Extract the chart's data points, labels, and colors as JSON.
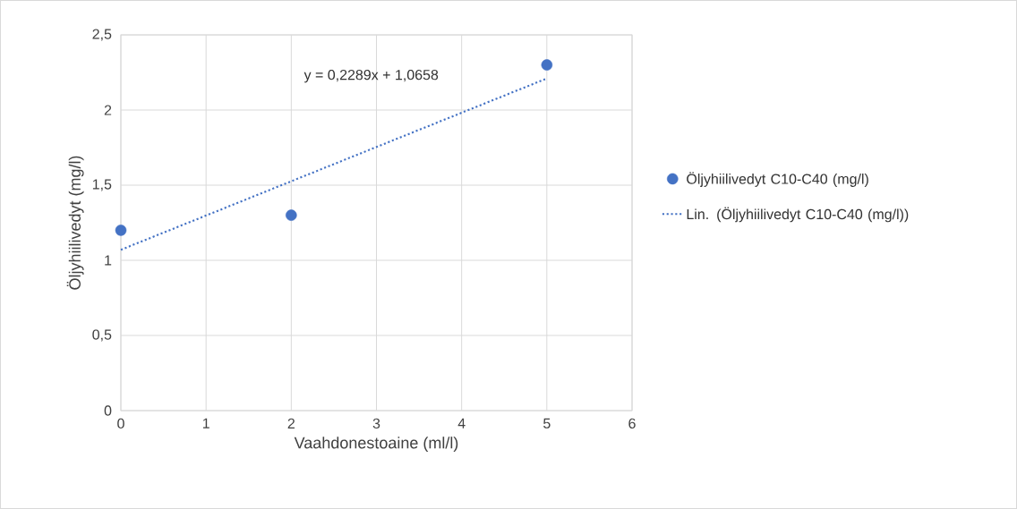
{
  "chart_data": {
    "type": "scatter",
    "xlabel": "Vaahdonestoaine (ml/l)",
    "ylabel": "Öljyhiilivedyt (mg/l)",
    "xlim": [
      0,
      6
    ],
    "ylim": [
      0,
      2.5
    ],
    "xticks": [
      0,
      1,
      2,
      3,
      4,
      5,
      6
    ],
    "yticks": [
      0,
      {
        "value": 0.5,
        "label": "0,5"
      },
      1,
      {
        "value": 1.5,
        "label": "1,5"
      },
      2,
      {
        "value": 2.5,
        "label": "2,5"
      }
    ],
    "grid": true,
    "legend": "right",
    "annotations": [
      "y = 0,2289x + 1,0658"
    ],
    "series": [
      {
        "name": "Öljyhiilivedyt C10-C40 (mg/l)",
        "color": "#4472c4",
        "x": [
          0,
          2,
          5
        ],
        "values": [
          1.2,
          1.3,
          2.3
        ],
        "marker": "circle"
      },
      {
        "type": "line",
        "name": "Lin. (Öljyhiilivedyt C10-C40 (mg/l))",
        "color": "#4472c4",
        "x": [
          0,
          5
        ],
        "values": [
          1.07,
          2.21
        ],
        "line_style": "dotted",
        "marker": "none"
      }
    ]
  }
}
